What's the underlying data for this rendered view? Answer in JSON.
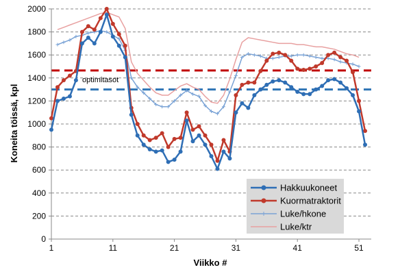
{
  "chart_data": {
    "type": "line",
    "xlabel": "Viikko #",
    "ylabel": "Koneita töissä, kpl",
    "xlim": [
      1,
      53
    ],
    "ylim": [
      0,
      2000
    ],
    "xticks": [
      1,
      11,
      21,
      31,
      41,
      51
    ],
    "yticks": [
      0,
      200,
      400,
      600,
      800,
      1000,
      1200,
      1400,
      1600,
      1800,
      2000
    ],
    "grid": "horizontal dashed",
    "legend": "bottom-right",
    "annotation": "optimitasot",
    "optimum_lines": [
      {
        "value": 1300,
        "color": "#2e74b5"
      },
      {
        "value": 1465,
        "color": "#c00000"
      }
    ],
    "series": [
      {
        "name": "Hakkuukoneet",
        "color": "#2e6eb5",
        "marker": "circle",
        "x": [
          1,
          2,
          3,
          4,
          5,
          6,
          7,
          8,
          9,
          10,
          11,
          12,
          13,
          14,
          15,
          16,
          17,
          18,
          19,
          20,
          21,
          22,
          23,
          24,
          25,
          26,
          27,
          28,
          29,
          30,
          31,
          32,
          33,
          34,
          35,
          36,
          37,
          38,
          39,
          40,
          41,
          42,
          43,
          44,
          45,
          46,
          47,
          48,
          49,
          50,
          51,
          52
        ],
        "values": [
          950,
          1200,
          1220,
          1240,
          1380,
          1700,
          1750,
          1700,
          1800,
          1950,
          1760,
          1680,
          1580,
          1080,
          900,
          820,
          780,
          760,
          770,
          670,
          690,
          760,
          1030,
          850,
          900,
          820,
          720,
          610,
          760,
          700,
          1100,
          1180,
          1140,
          1250,
          1300,
          1340,
          1370,
          1380,
          1360,
          1320,
          1280,
          1260,
          1260,
          1300,
          1330,
          1380,
          1390,
          1360,
          1310,
          1250,
          1110,
          820
        ]
      },
      {
        "name": "Kuormatraktorit",
        "color": "#c0392b",
        "marker": "circle",
        "x": [
          1,
          2,
          3,
          4,
          5,
          6,
          7,
          8,
          9,
          10,
          11,
          12,
          13,
          14,
          15,
          16,
          17,
          18,
          19,
          20,
          21,
          22,
          23,
          24,
          25,
          26,
          27,
          28,
          29,
          30,
          31,
          32,
          33,
          34,
          35,
          36,
          37,
          38,
          39,
          40,
          41,
          42,
          43,
          44,
          45,
          46,
          47,
          48,
          49,
          50,
          51,
          52
        ],
        "values": [
          1050,
          1320,
          1380,
          1420,
          1460,
          1800,
          1850,
          1820,
          1920,
          2000,
          1870,
          1780,
          1680,
          1140,
          1000,
          900,
          860,
          880,
          920,
          800,
          870,
          880,
          1100,
          950,
          980,
          900,
          820,
          680,
          860,
          760,
          1250,
          1340,
          1360,
          1360,
          1460,
          1550,
          1610,
          1620,
          1600,
          1550,
          1480,
          1470,
          1480,
          1500,
          1530,
          1600,
          1620,
          1580,
          1550,
          1450,
          1200,
          940
        ]
      },
      {
        "name": "Luke/hkone",
        "color": "#7aa3d6",
        "marker": "plus",
        "x": [
          2,
          3,
          4,
          5,
          6,
          7,
          8,
          9,
          10,
          11,
          12,
          13,
          14,
          15,
          16,
          17,
          18,
          19,
          20,
          21,
          22,
          23,
          24,
          25,
          26,
          27,
          28,
          29,
          30,
          31,
          32,
          33,
          34,
          35,
          36,
          37,
          38,
          39,
          40,
          41,
          42,
          43,
          44,
          45,
          46,
          47,
          48,
          49,
          50,
          51
        ],
        "values": [
          1690,
          1710,
          1730,
          1760,
          1770,
          1790,
          1800,
          1810,
          1800,
          1770,
          1740,
          1640,
          1400,
          1320,
          1270,
          1220,
          1170,
          1150,
          1150,
          1200,
          1250,
          1290,
          1260,
          1240,
          1160,
          1110,
          1090,
          1150,
          1280,
          1420,
          1580,
          1610,
          1600,
          1590,
          1570,
          1570,
          1580,
          1590,
          1590,
          1600,
          1600,
          1590,
          1580,
          1570,
          1570,
          1560,
          1540,
          1530,
          1520,
          1500
        ]
      },
      {
        "name": "Luke/ktr",
        "color": "#e8a0a0",
        "marker": "none",
        "x": [
          2,
          3,
          4,
          5,
          6,
          7,
          8,
          9,
          10,
          11,
          12,
          13,
          14,
          15,
          16,
          17,
          18,
          19,
          20,
          21,
          22,
          23,
          24,
          25,
          26,
          27,
          28,
          29,
          30,
          31,
          32,
          33,
          34,
          35,
          36,
          37,
          38,
          39,
          40,
          41,
          42,
          43,
          44,
          45,
          46,
          47,
          48,
          49,
          50,
          51
        ],
        "values": [
          1820,
          1840,
          1860,
          1880,
          1900,
          1920,
          1940,
          1960,
          1970,
          1950,
          1930,
          1830,
          1540,
          1440,
          1380,
          1320,
          1270,
          1250,
          1250,
          1290,
          1330,
          1350,
          1320,
          1300,
          1240,
          1190,
          1180,
          1250,
          1390,
          1560,
          1710,
          1750,
          1740,
          1730,
          1720,
          1710,
          1700,
          1700,
          1700,
          1690,
          1690,
          1680,
          1670,
          1670,
          1660,
          1650,
          1630,
          1610,
          1600,
          1580
        ]
      }
    ]
  }
}
